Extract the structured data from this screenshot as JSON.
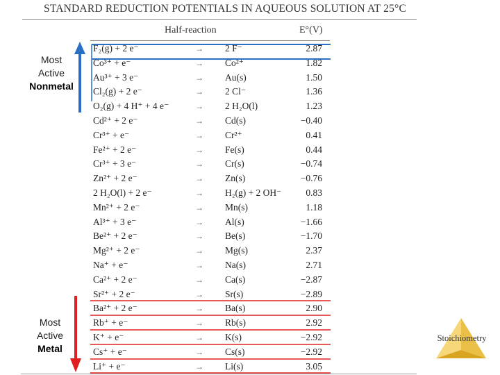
{
  "title": "STANDARD REDUCTION POTENTIALS IN AQUEOUS SOLUTION AT 25°C",
  "headers": {
    "half_reaction": "Half-reaction",
    "potential": "E°(V)"
  },
  "arrow_glyph": "→",
  "rows": [
    {
      "left": "F₂(g) + 2 e⁻",
      "right": "2 F⁻",
      "value": "2.87"
    },
    {
      "left": "Co³⁺ + e⁻",
      "right": "Co²⁺",
      "value": "1.82"
    },
    {
      "left": "Au³⁺ + 3 e⁻",
      "right": "Au(s)",
      "value": "1.50"
    },
    {
      "left": "Cl₂(g) + 2 e⁻",
      "right": "2 Cl⁻",
      "value": "1.36"
    },
    {
      "left": "O₂(g) + 4 H⁺ + 4 e⁻",
      "right": "2 H₂O(l)",
      "value": "1.23"
    },
    {
      "left": "Cd²⁺ + 2 e⁻",
      "right": "Cd(s)",
      "value": "−0.40"
    },
    {
      "left": "Cr³⁺ + e⁻",
      "right": "Cr²⁺",
      "value": "0.41"
    },
    {
      "left": "Fe²⁺ + 2 e⁻",
      "right": "Fe(s)",
      "value": "0.44"
    },
    {
      "left": "Cr³⁺ + 3 e⁻",
      "right": "Cr(s)",
      "value": "−0.74"
    },
    {
      "left": "Zn²⁺ + 2 e⁻",
      "right": "Zn(s)",
      "value": "−0.76"
    },
    {
      "left": "2 H₂O(l) + 2 e⁻",
      "right": "H₂(g) + 2 OH⁻",
      "value": "0.83"
    },
    {
      "left": "Mn²⁺ + 2 e⁻",
      "right": "Mn(s)",
      "value": "1.18"
    },
    {
      "left": "Al³⁺ + 3 e⁻",
      "right": "Al(s)",
      "value": "−1.66"
    },
    {
      "left": "Be²⁺ + 2 e⁻",
      "right": "Be(s)",
      "value": "−1.70"
    },
    {
      "left": "Mg²⁺ + 2 e⁻",
      "right": "Mg(s)",
      "value": "2.37"
    },
    {
      "left": "Na⁺ + e⁻",
      "right": "Na(s)",
      "value": "2.71"
    },
    {
      "left": "Ca²⁺ + 2 e⁻",
      "right": "Ca(s)",
      "value": "−2.87"
    },
    {
      "left": "Sr²⁺ + 2 e⁻",
      "right": "Sr(s)",
      "value": "−2.89"
    },
    {
      "left": "Ba²⁺ + 2 e⁻",
      "right": "Ba(s)",
      "value": "2.90"
    },
    {
      "left": "Rb⁺ + e⁻",
      "right": "Rb(s)",
      "value": "2.92"
    },
    {
      "left": "K⁺ + e⁻",
      "right": "K(s)",
      "value": "−2.92"
    },
    {
      "left": "Cs⁺ + e⁻",
      "right": "Cs(s)",
      "value": "−2.92"
    },
    {
      "left": "Li⁺ + e⁻",
      "right": "Li(s)",
      "value": "3.05"
    }
  ],
  "labels": {
    "nonmetal": {
      "line1": "Most",
      "line2": "Active",
      "line3": "Nonmetal"
    },
    "metal": {
      "line1": "Most",
      "line2": "Active",
      "line3": "Metal"
    }
  },
  "logo_text": "Stoichiometry",
  "colors": {
    "nonmetal_accent": "#2b6fc4",
    "metal_accent": "#e02020",
    "pyramid_light": "#f6d77a",
    "pyramid_dark": "#d9a520"
  }
}
